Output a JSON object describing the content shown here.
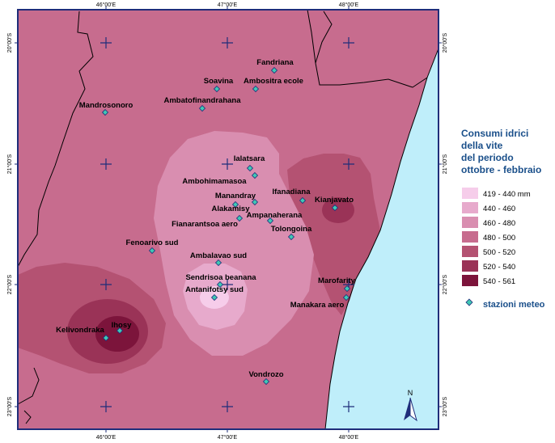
{
  "colors": {
    "sea": "#bfeefa",
    "class_419_440": "#f6cdea",
    "class_440_460": "#e7aacc",
    "class_460_480": "#d98eb0",
    "class_480_500": "#c76c8e",
    "class_500_520": "#b45272",
    "class_520_540": "#9a3357",
    "class_540_561": "#7c143b",
    "frame": "#1f2d7a",
    "station": "#40c8b4"
  },
  "map": {
    "top_ticks": [
      "46°00'E",
      "47°00'E",
      "48°00'E"
    ],
    "bottom_ticks": [
      "46°00'E",
      "47°00'E",
      "48°00'E"
    ],
    "left_ticks": [
      "20°00'S",
      "21°00'S",
      "22°00'S",
      "23°00'S"
    ],
    "right_ticks": [
      "20°00'S",
      "21°00'S",
      "22°00'S",
      "23°00'S"
    ],
    "north_label": "N"
  },
  "stations": [
    {
      "name": "Fandriana"
    },
    {
      "name": "Soavina"
    },
    {
      "name": "Ambositra ecole"
    },
    {
      "name": "Ambatofinandrahana"
    },
    {
      "name": "Mandrosonoro"
    },
    {
      "name": "Ialatsara"
    },
    {
      "name": "Ambohimamasoa"
    },
    {
      "name": "Ifanadiana"
    },
    {
      "name": "Kianjavato"
    },
    {
      "name": "Manandray"
    },
    {
      "name": "Alakamisy"
    },
    {
      "name": "Ampanaherana"
    },
    {
      "name": "Fianarantsoa aero"
    },
    {
      "name": "Tolongoina"
    },
    {
      "name": "Fenoarivo sud"
    },
    {
      "name": "Ambalavao sud"
    },
    {
      "name": "Sendrisoa beanana"
    },
    {
      "name": "Antanifotsy sud"
    },
    {
      "name": "Marofarity"
    },
    {
      "name": "Manakara aero"
    },
    {
      "name": "Ihosy"
    },
    {
      "name": "Kelivondraka"
    },
    {
      "name": "Vondrozo"
    }
  ],
  "legend": {
    "title_lines": [
      "Consumi idrici",
      "della vite",
      "del periodo",
      "ottobre - febbraio"
    ],
    "classes": [
      {
        "label": "419 - 440 mm"
      },
      {
        "label": "440 - 460"
      },
      {
        "label": "460 - 480"
      },
      {
        "label": "480 - 500"
      },
      {
        "label": "500 - 520"
      },
      {
        "label": "520 - 540"
      },
      {
        "label": "540 - 561"
      }
    ],
    "stations_label": "stazioni meteo"
  }
}
